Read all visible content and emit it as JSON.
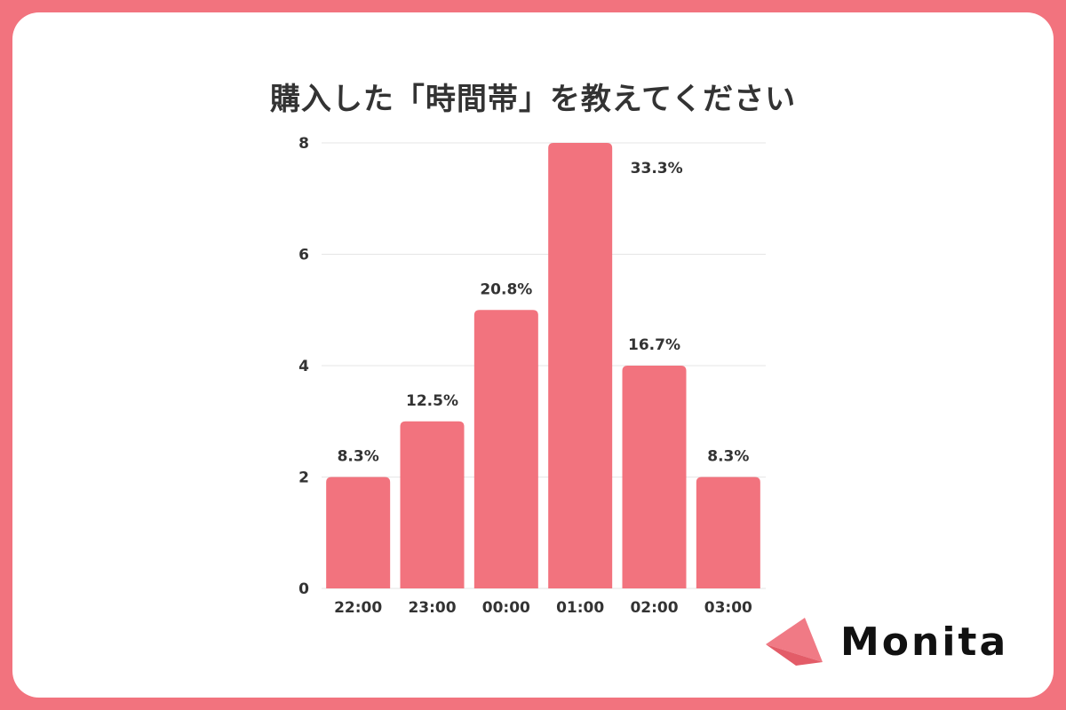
{
  "title": "購入した「時間帯」を教えてください",
  "brand": {
    "name": "Monita",
    "icon": "triangle-logo-icon"
  },
  "colors": {
    "frame": "#f2737e",
    "bar": "#f2737e",
    "grid": "#e6e6e6",
    "text": "#333333"
  },
  "chart_data": {
    "type": "bar",
    "title": "購入した「時間帯」を教えてください",
    "categories": [
      "22:00",
      "23:00",
      "00:00",
      "01:00",
      "02:00",
      "03:00"
    ],
    "values": [
      2,
      3,
      5,
      8,
      4,
      2
    ],
    "data_labels": [
      "8.3%",
      "12.5%",
      "20.8%",
      "33.3%",
      "16.7%",
      "8.3%"
    ],
    "ylim": [
      0,
      8
    ],
    "yticks": [
      0,
      2,
      4,
      6,
      8
    ],
    "grid": true,
    "xlabel": "",
    "ylabel": ""
  }
}
